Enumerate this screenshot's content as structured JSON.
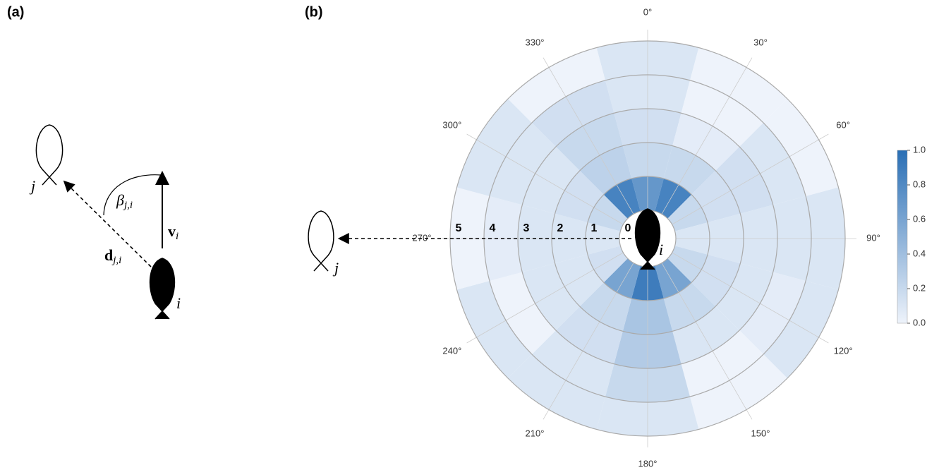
{
  "panel_a": {
    "label": "(a)",
    "fish_j": "j",
    "fish_i": "i",
    "angle_symbol": "β",
    "angle_sub": "j,i",
    "velocity_symbol": "v",
    "velocity_sub": "i",
    "distance_symbol": "d",
    "distance_sub": "j,i"
  },
  "panel_b": {
    "label": "(b)",
    "fish_j": "j",
    "fish_i": "i"
  },
  "chart_data": {
    "type": "polar-heatmap",
    "thetaticks": [
      {
        "value": 0,
        "label": "0°"
      },
      {
        "value": 30,
        "label": "30°"
      },
      {
        "value": 60,
        "label": "60°"
      },
      {
        "value": 90,
        "label": "90°"
      },
      {
        "value": 120,
        "label": "120°"
      },
      {
        "value": 150,
        "label": "150°"
      },
      {
        "value": 180,
        "label": "180°"
      },
      {
        "value": 210,
        "label": "210°"
      },
      {
        "value": 240,
        "label": "240°"
      },
      {
        "value": 270,
        "label": "270°"
      },
      {
        "value": 300,
        "label": "300°"
      },
      {
        "value": 330,
        "label": "330°"
      }
    ],
    "rlim": [
      0,
      5
    ],
    "rticks": [
      0,
      1,
      2,
      3,
      4,
      5
    ],
    "values": [
      [
        0.7,
        0.85,
        0.2,
        0.1,
        0.2,
        0.6,
        0.9,
        0.6,
        0.15,
        0.1,
        0.2,
        0.85
      ],
      [
        0.2,
        0.2,
        0.15,
        0.1,
        0.15,
        0.2,
        0.35,
        0.2,
        0.1,
        0.1,
        0.15,
        0.25
      ],
      [
        0.15,
        0.05,
        0.15,
        0.1,
        0.1,
        0.1,
        0.3,
        0.15,
        0.1,
        0.1,
        0.1,
        0.2
      ],
      [
        0.1,
        0,
        0.1,
        0.1,
        0.05,
        0,
        0.2,
        0.1,
        0,
        0.05,
        0.1,
        0.15
      ],
      [
        0.1,
        0,
        0,
        0.1,
        0.1,
        0,
        0.1,
        0.1,
        0.1,
        0,
        0.1,
        0
      ]
    ],
    "clim": [
      0,
      1
    ],
    "cmap": [
      "#eef3fb",
      "#2a6fb5"
    ],
    "cticks": [
      {
        "value": 0,
        "label": "0.0"
      },
      0.2,
      0.4,
      0.6,
      0.8,
      {
        "value": 1,
        "label": "1.0"
      }
    ]
  }
}
